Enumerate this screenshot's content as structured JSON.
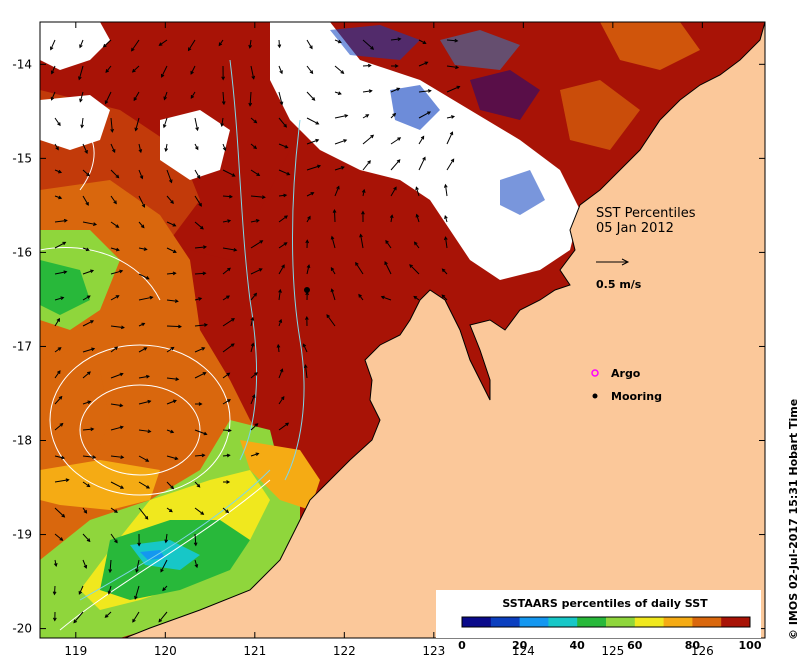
{
  "map": {
    "x_ticks": [
      "119",
      "120",
      "121",
      "122",
      "123",
      "124",
      "125",
      "126"
    ],
    "y_ticks": [
      "-14",
      "-15",
      "-16",
      "-17",
      "-18",
      "-19",
      "-20"
    ],
    "lon_range": [
      118.6,
      126.7
    ],
    "lat_range": [
      -20.1,
      -13.55
    ]
  },
  "title": {
    "line1": "SST Percentiles",
    "line2": "05 Jan 2012"
  },
  "velocity_key": {
    "label": "0.5 m/s"
  },
  "legend": {
    "argo": "Argo",
    "mooring": "Mooring",
    "argo_color": "#ff00ff",
    "mooring_color": "#000000"
  },
  "colorbar": {
    "title": "SSTAARS percentiles of daily SST",
    "ticks": [
      "0",
      "20",
      "40",
      "60",
      "80",
      "100"
    ],
    "colors": [
      "#0a0a8a",
      "#0b3fbf",
      "#1497f0",
      "#17c7c7",
      "#28b83a",
      "#8fd63c",
      "#f0e81e",
      "#f5ab14",
      "#d9670d",
      "#a81306"
    ]
  },
  "credit": "© IMOS 02-Jul-2017 15:31 Hobart Time",
  "colors": {
    "land": "#fbc89a",
    "nodata": "#ffffff",
    "coast": "#000000",
    "contour": "#ffffff"
  }
}
